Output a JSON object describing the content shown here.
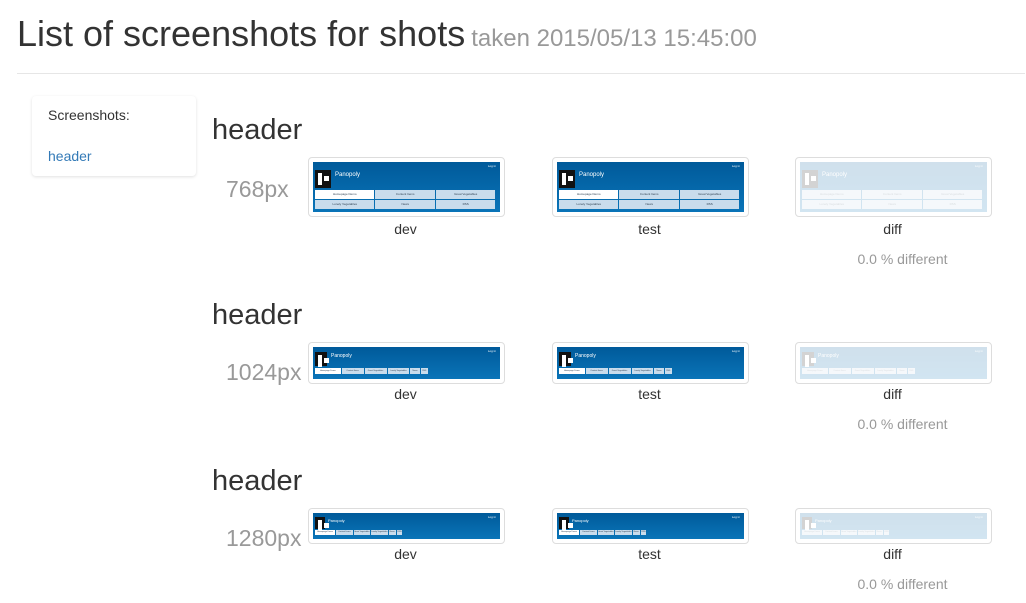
{
  "header": {
    "title": "List of screenshots for shots",
    "subtitle": "taken 2015/05/13 15:45:00"
  },
  "sidebar": {
    "title": "Screenshots:",
    "links": [
      {
        "label": "header"
      }
    ]
  },
  "sections": [
    {
      "title": "header",
      "width_label": "768px",
      "captions": {
        "dev": "dev",
        "test": "test",
        "diff": "diff"
      },
      "diff_text": "0.0 % different"
    },
    {
      "title": "header",
      "width_label": "1024px",
      "captions": {
        "dev": "dev",
        "test": "test",
        "diff": "diff"
      },
      "diff_text": "0.0 % different"
    },
    {
      "title": "header",
      "width_label": "1280px",
      "captions": {
        "dev": "dev",
        "test": "test",
        "diff": "diff"
      },
      "diff_text": "0.0 % different"
    }
  ],
  "thumbnail": {
    "brand": "Panopoly",
    "login": "Log in",
    "tabs": [
      "Homepage Demo",
      "Content Items",
      "Great Vegetables",
      "Lonely Vegetables",
      "News",
      "RSS"
    ]
  },
  "colors": {
    "link": "#337ab7",
    "muted": "#999999",
    "thumb_bg": "#0a6aad"
  }
}
